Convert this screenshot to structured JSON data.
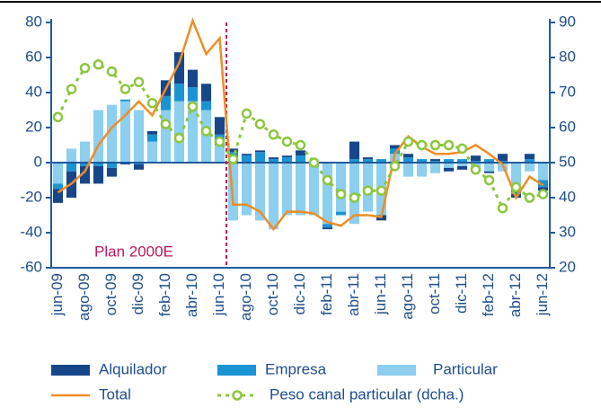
{
  "chart_data": {
    "type": "bar",
    "categories": [
      "jun-09",
      null,
      "ago-09",
      null,
      "oct-09",
      null,
      "dic-09",
      null,
      "feb-10",
      null,
      "abr-10",
      null,
      "jun-10",
      null,
      "ago-10",
      null,
      "oct-10",
      null,
      "dic-10",
      null,
      "feb-11",
      null,
      "abr-11",
      null,
      "jun-11",
      null,
      "ago-11",
      null,
      "oct-11",
      null,
      "dic-11",
      null,
      "feb-12",
      null,
      "abr-12",
      null,
      "jun-12"
    ],
    "series": [
      {
        "name": "Alquilador",
        "type": "bar",
        "color": "#17468a",
        "values": [
          -8,
          -15,
          -10,
          -10,
          -5,
          -1,
          -3,
          2,
          9,
          18,
          10,
          10,
          10,
          2,
          1,
          1,
          1,
          1,
          3,
          0,
          -1,
          0,
          10,
          1,
          -3,
          2,
          2,
          0,
          1,
          -2,
          -2,
          3,
          -1,
          4,
          -2,
          3,
          -2
        ]
      },
      {
        "name": "Empresa",
        "type": "bar",
        "color": "#1b94d3",
        "values": [
          -3,
          -5,
          -2,
          -2,
          -3,
          1,
          -1,
          4,
          8,
          10,
          8,
          5,
          6,
          6,
          4,
          6,
          2,
          3,
          4,
          1,
          -2,
          -2,
          2,
          2,
          2,
          3,
          3,
          2,
          1,
          2,
          2,
          1,
          2,
          1,
          -3,
          2,
          -4
        ]
      },
      {
        "name": "Particular",
        "type": "bar",
        "color": "#8ccfee",
        "values": [
          -12,
          8,
          12,
          30,
          33,
          35,
          30,
          12,
          30,
          35,
          35,
          30,
          10,
          -33,
          -30,
          -33,
          -38,
          -30,
          -30,
          -30,
          -35,
          -28,
          -35,
          -28,
          -30,
          5,
          -8,
          -8,
          -6,
          -3,
          -2,
          -5,
          -5,
          -5,
          -15,
          -5,
          -10
        ]
      },
      {
        "name": "Total",
        "type": "line",
        "color": "#f08c25",
        "values": [
          -17,
          -12,
          -5,
          10,
          20,
          27,
          35,
          27,
          42,
          57,
          81,
          62,
          71,
          -24,
          -24,
          -28,
          -38,
          -28,
          -28,
          -29,
          -34,
          -36,
          -30,
          -30,
          -31,
          5,
          15,
          9,
          5,
          5,
          6,
          10,
          5,
          -1,
          -20,
          -8,
          -13
        ]
      },
      {
        "name": "Peso canal particular (dcha.)",
        "type": "line",
        "dashed": true,
        "axis": "y2",
        "color": "#8dc63f",
        "values": [
          63,
          71,
          77,
          78,
          76,
          71,
          73,
          67,
          61,
          57,
          66,
          59,
          56,
          51,
          64,
          61,
          58,
          56,
          55,
          50,
          45,
          41,
          40,
          42,
          42,
          49,
          56,
          55,
          55,
          55,
          54,
          48,
          45,
          37,
          43,
          40,
          41
        ]
      }
    ],
    "annotations": [
      "Plan 2000E"
    ],
    "ylim": [
      -60,
      80
    ],
    "yticks": [
      -60,
      -40,
      -20,
      0,
      20,
      40,
      60,
      80
    ],
    "y2lim": [
      20,
      90
    ],
    "y2ticks": [
      20,
      30,
      40,
      50,
      60,
      70,
      80,
      90
    ]
  }
}
